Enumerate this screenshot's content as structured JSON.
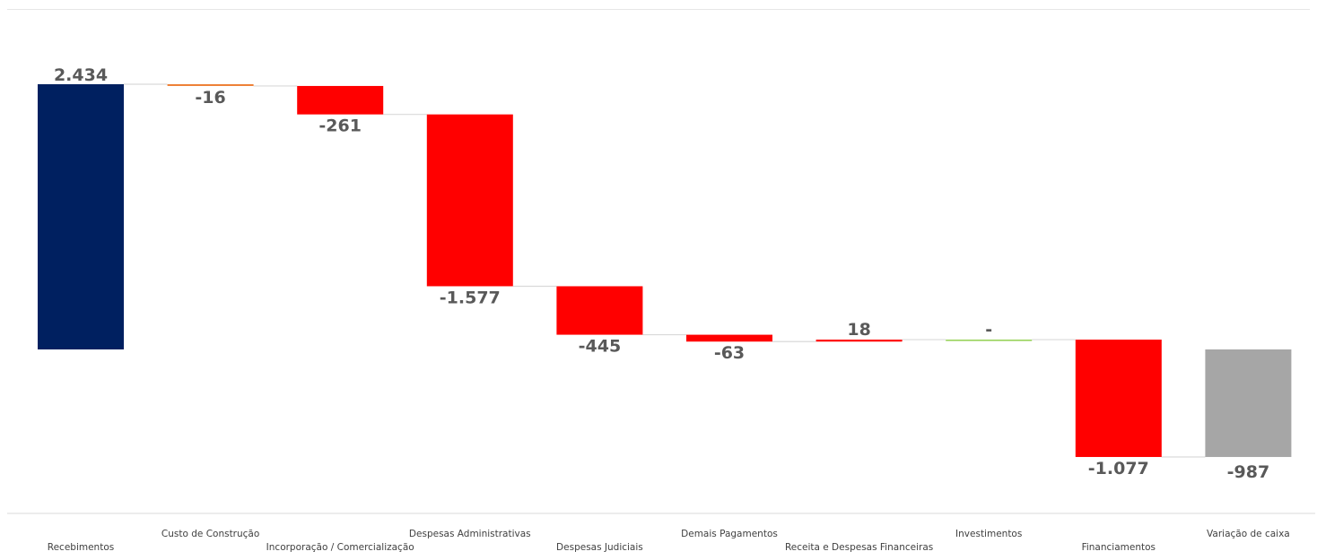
{
  "chart_data": {
    "type": "waterfall",
    "title": "",
    "xlabel": "",
    "ylabel": "",
    "categories": [
      "Recebimentos",
      "Custo de Construção",
      "Incorporação / Comercialização",
      "Despesas Administrativas",
      "Despesas Judiciais",
      "Demais Pagamentos",
      "Receita e Despesas Financeiras",
      "Investimentos",
      "Financiamentos",
      "Variação de caixa"
    ],
    "values": [
      2434,
      -16,
      -261,
      -1577,
      -445,
      -63,
      18,
      0,
      -1077,
      -987
    ],
    "labels": [
      "2.434",
      "-16",
      "-261",
      "-1.577",
      "-445",
      "-63",
      "18",
      "-",
      "-1.077",
      "-987"
    ],
    "kinds": [
      "total",
      "delta",
      "delta",
      "delta",
      "delta",
      "delta",
      "delta",
      "delta",
      "delta",
      "total"
    ],
    "colors": {
      "positive_total": "#002060",
      "negative_total": "#a6a6a6",
      "decrease": "#ff0000",
      "increase": "#ff0000",
      "zero": "#92d050",
      "small_decrease": "#ed7d31",
      "connector": "#d9d9d9",
      "label": "#595959",
      "axis": "#d9d9d9"
    },
    "grid": false,
    "legend": "none"
  }
}
